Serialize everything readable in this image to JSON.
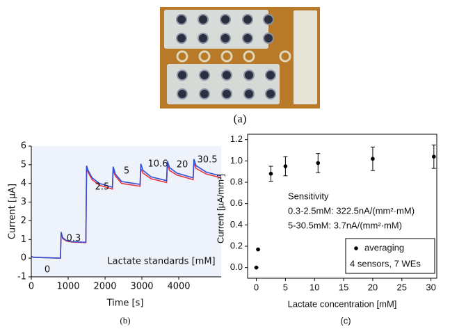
{
  "photo": {
    "caption": "(a)"
  },
  "chart_data": [
    {
      "type": "line",
      "caption": "(b)",
      "x_label": "Time [s]",
      "y_label": "Current [µA]",
      "annotations": [
        "0",
        "0.3",
        "2.5",
        "5",
        "10.6",
        "20",
        "30.5"
      ],
      "note": "Lactate standards [mM]",
      "x": [
        0,
        50,
        790,
        810,
        850,
        950,
        1100,
        1480,
        1500,
        1540,
        1650,
        1850,
        2200,
        2220,
        2280,
        2450,
        2950,
        2970,
        3030,
        3250,
        3670,
        3690,
        3750,
        3950,
        4390,
        4410,
        4470,
        4750,
        5150
      ],
      "series": [
        {
          "color": "#e8343c",
          "values": [
            0.1,
            0.05,
            0.0,
            1.35,
            1.05,
            0.92,
            0.86,
            0.83,
            4.9,
            4.6,
            4.2,
            3.9,
            3.7,
            4.7,
            4.4,
            4.0,
            3.85,
            4.8,
            4.55,
            4.25,
            4.05,
            5.0,
            4.7,
            4.45,
            4.2,
            5.1,
            4.8,
            4.5,
            4.3
          ]
        },
        {
          "color": "#2f4fd8",
          "values": [
            0.1,
            0.05,
            0.0,
            1.4,
            1.1,
            0.95,
            0.88,
            0.85,
            4.95,
            4.7,
            4.3,
            4.0,
            3.8,
            4.9,
            4.5,
            4.1,
            3.95,
            5.05,
            4.7,
            4.35,
            4.15,
            5.2,
            4.85,
            4.55,
            4.3,
            5.3,
            4.95,
            4.6,
            4.4
          ]
        }
      ],
      "xlim": [
        0,
        5150
      ],
      "xticks": [
        0,
        1000,
        2000,
        3000,
        4000
      ],
      "ylim": [
        -1,
        6
      ],
      "yticks": [
        -1,
        0,
        1,
        2,
        3,
        4,
        5,
        6
      ]
    },
    {
      "type": "scatter",
      "caption": "(c)",
      "x_label": "Lactate concentration [mM]",
      "y_label": "Current [µA/mm²]",
      "text_lines": [
        "Sensitivity",
        "0.3-2.5mM: 322.5nA/(mm²·mM)",
        "5-30.5mM: 3.7nA/(mm²·mM)"
      ],
      "x": [
        0,
        0.3,
        2.5,
        5,
        10.6,
        20,
        30.5
      ],
      "series": [
        {
          "name": "averaging",
          "color": "#000000",
          "values": [
            0.0,
            0.17,
            0.88,
            0.95,
            0.98,
            1.02,
            1.04
          ],
          "errors": [
            0,
            0,
            0.07,
            0.09,
            0.09,
            0.11,
            0.11
          ]
        }
      ],
      "legend_note": "4 sensors, 7 WEs",
      "xlim": [
        -1.5,
        31
      ],
      "xticks": [
        0,
        5,
        10,
        15,
        20,
        25,
        30
      ],
      "ylim": [
        -0.1,
        1.25
      ],
      "yticks": [
        {
          "value": 0,
          "label": "0.0"
        },
        0.2,
        0.4,
        0.6,
        0.8,
        {
          "value": 1,
          "label": "1.0"
        },
        1.2
      ]
    }
  ]
}
